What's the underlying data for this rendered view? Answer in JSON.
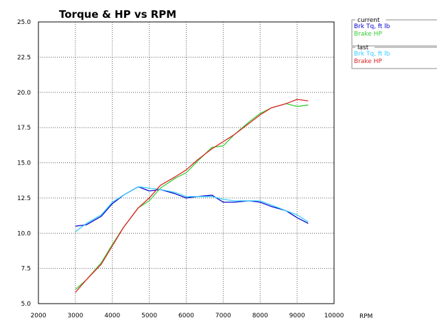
{
  "chart_data": {
    "type": "line",
    "title": "Torque & HP vs RPM",
    "xlabel": "RPM",
    "ylabel": "",
    "xlim": [
      2000,
      10000
    ],
    "ylim": [
      5.0,
      25.0
    ],
    "x_ticks": [
      2000,
      3000,
      4000,
      5000,
      6000,
      7000,
      8000,
      9000,
      10000
    ],
    "y_ticks": [
      "5.0",
      "7.5",
      "10.0",
      "12.5",
      "15.0",
      "17.5",
      "20.0",
      "22.5",
      "25.0"
    ],
    "grid": true,
    "legend_position": "right",
    "legend_groups": [
      {
        "title": "current",
        "series": [
          {
            "name": "Brk Tq, ft lb",
            "color": "#0000cc",
            "x": [
              3000,
              3300,
              3700,
              4000,
              4300,
              4700,
              5000,
              5300,
              5700,
              6000,
              6300,
              6700,
              7000,
              7300,
              7700,
              8000,
              8300,
              8700,
              9000,
              9300
            ],
            "y": [
              10.5,
              10.6,
              11.2,
              12.1,
              12.7,
              13.3,
              13.0,
              13.1,
              12.8,
              12.5,
              12.6,
              12.7,
              12.2,
              12.2,
              12.3,
              12.2,
              11.9,
              11.6,
              11.1,
              10.7
            ]
          },
          {
            "name": "Brake HP",
            "color": "#33cc33",
            "x": [
              3000,
              3300,
              3700,
              4000,
              4300,
              4700,
              5000,
              5300,
              5700,
              6000,
              6300,
              6700,
              7000,
              7300,
              7700,
              8000,
              8300,
              8700,
              9000,
              9300
            ],
            "y": [
              6.0,
              6.7,
              7.9,
              9.2,
              10.4,
              11.8,
              12.3,
              13.2,
              13.9,
              14.3,
              15.1,
              16.1,
              16.2,
              17.0,
              17.9,
              18.5,
              18.9,
              19.2,
              19.0,
              19.1
            ]
          }
        ]
      },
      {
        "title": "last",
        "series": [
          {
            "name": "Brk Tq, ft lb",
            "color": "#33ccff",
            "x": [
              3000,
              3300,
              3700,
              4000,
              4300,
              4700,
              5000,
              5300,
              5700,
              6000,
              6300,
              6700,
              7000,
              7300,
              7700,
              8000,
              8300,
              8700,
              9000,
              9300
            ],
            "y": [
              10.1,
              10.7,
              11.3,
              12.2,
              12.7,
              13.3,
              13.2,
              13.1,
              12.9,
              12.6,
              12.6,
              12.6,
              12.4,
              12.3,
              12.3,
              12.3,
              12.0,
              11.6,
              11.3,
              10.8
            ]
          },
          {
            "name": "Brake HP",
            "color": "#dd2222",
            "x": [
              3000,
              3300,
              3700,
              4000,
              4300,
              4700,
              5000,
              5300,
              5700,
              6000,
              6300,
              6700,
              7000,
              7300,
              7700,
              8000,
              8300,
              8700,
              9000,
              9300
            ],
            "y": [
              5.8,
              6.7,
              7.8,
              9.1,
              10.4,
              11.8,
              12.5,
              13.4,
              14.0,
              14.5,
              15.2,
              16.0,
              16.5,
              17.0,
              17.8,
              18.4,
              18.9,
              19.2,
              19.5,
              19.4
            ]
          }
        ]
      }
    ]
  }
}
